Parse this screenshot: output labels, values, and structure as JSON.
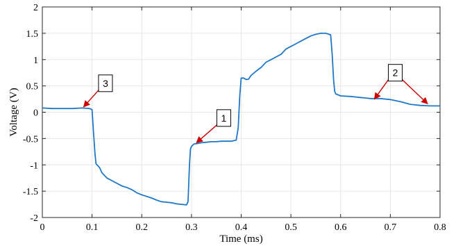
{
  "chart_data": {
    "type": "line",
    "title": "",
    "xlabel": "Time (ms)",
    "ylabel": "Voltage (V)",
    "xlim": [
      0,
      0.8
    ],
    "ylim": [
      -2,
      2
    ],
    "x_ticks": [
      "0",
      "0.1",
      "0.2",
      "0.3",
      "0.4",
      "0.5",
      "0.6",
      "0.7",
      "0.8"
    ],
    "y_ticks": [
      "-2",
      "-1.5",
      "-1",
      "-0.5",
      "0",
      "0.5",
      "1",
      "1.5",
      "2"
    ],
    "grid": true,
    "line_color": "#1f77c8",
    "annotation_color": "#cc0000",
    "series": [
      {
        "x": [
          0,
          0.02,
          0.04,
          0.06,
          0.08,
          0.095,
          0.1,
          0.103,
          0.106,
          0.108,
          0.11,
          0.115,
          0.12,
          0.13,
          0.14,
          0.15,
          0.16,
          0.17,
          0.18,
          0.19,
          0.2,
          0.21,
          0.22,
          0.23,
          0.24,
          0.25,
          0.26,
          0.27,
          0.28,
          0.29,
          0.293,
          0.296,
          0.298,
          0.3,
          0.303,
          0.306,
          0.31,
          0.32,
          0.33,
          0.34,
          0.35,
          0.36,
          0.37,
          0.38,
          0.39,
          0.394,
          0.397,
          0.4,
          0.405,
          0.41,
          0.415,
          0.42,
          0.43,
          0.44,
          0.45,
          0.46,
          0.47,
          0.48,
          0.49,
          0.5,
          0.51,
          0.52,
          0.53,
          0.54,
          0.55,
          0.56,
          0.57,
          0.58,
          0.583,
          0.586,
          0.588,
          0.59,
          0.595,
          0.6,
          0.62,
          0.64,
          0.65,
          0.66,
          0.68,
          0.7,
          0.72,
          0.74,
          0.76,
          0.78,
          0.8
        ],
        "y": [
          0.08,
          0.07,
          0.07,
          0.07,
          0.08,
          0.07,
          0.05,
          -0.4,
          -0.8,
          -0.98,
          -1.0,
          -1.05,
          -1.15,
          -1.25,
          -1.3,
          -1.35,
          -1.4,
          -1.43,
          -1.47,
          -1.53,
          -1.57,
          -1.6,
          -1.63,
          -1.67,
          -1.7,
          -1.71,
          -1.72,
          -1.74,
          -1.75,
          -1.76,
          -1.7,
          -1.0,
          -0.7,
          -0.65,
          -0.62,
          -0.6,
          -0.6,
          -0.58,
          -0.57,
          -0.56,
          -0.56,
          -0.55,
          -0.55,
          -0.55,
          -0.53,
          -0.3,
          0.3,
          0.65,
          0.65,
          0.62,
          0.63,
          0.7,
          0.78,
          0.85,
          0.95,
          1.0,
          1.05,
          1.1,
          1.2,
          1.25,
          1.3,
          1.35,
          1.4,
          1.45,
          1.48,
          1.5,
          1.5,
          1.47,
          1.1,
          0.6,
          0.4,
          0.35,
          0.33,
          0.31,
          0.3,
          0.28,
          0.27,
          0.26,
          0.26,
          0.24,
          0.2,
          0.15,
          0.13,
          0.12,
          0.12
        ]
      }
    ],
    "annotations": [
      {
        "label": "3",
        "box": [
          0.127,
          0.55
        ],
        "targets": [
          [
            0.083,
            0.1
          ]
        ]
      },
      {
        "label": "1",
        "box": [
          0.365,
          -0.11
        ],
        "targets": [
          [
            0.31,
            -0.58
          ]
        ]
      },
      {
        "label": "2",
        "box": [
          0.71,
          0.75
        ],
        "targets": [
          [
            0.668,
            0.25
          ],
          [
            0.775,
            0.16
          ]
        ]
      }
    ]
  }
}
